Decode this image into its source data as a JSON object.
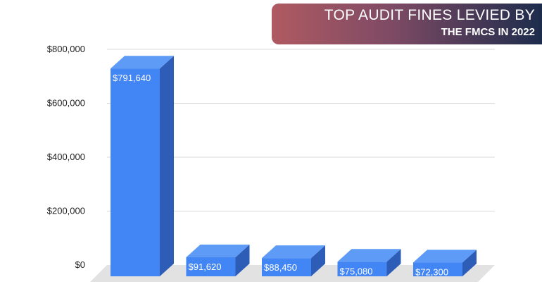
{
  "title": {
    "line1": "TOP AUDIT FINES LEVIED BY",
    "line2": "THE FMCS IN 2022"
  },
  "colors": {
    "bar_front": "#4285f4",
    "bar_side": "#2e5db8",
    "bar_top": "#5e9bf7",
    "floor": "#e2e2e2",
    "gridline": "#d9d9d9",
    "banner_start": "#b05a62",
    "banner_end": "#1d2c4c"
  },
  "chart_data": {
    "type": "bar",
    "categories": [
      "",
      "",
      "",
      "",
      ""
    ],
    "series": [
      {
        "values": [
          791640,
          91620,
          88450,
          75080,
          72300
        ]
      }
    ],
    "data_labels": [
      "$791,640",
      "$91,620",
      "$88,450",
      "$75,080",
      "$72,300"
    ],
    "y_ticks": [
      0,
      200000,
      400000,
      600000,
      800000
    ],
    "y_tick_labels": [
      "$0",
      "$200,000",
      "$400,000",
      "$600,000",
      "$800,000"
    ],
    "ylim": [
      0,
      800000
    ],
    "grid": true,
    "style": "3d",
    "legend": "none",
    "xlabel": "",
    "ylabel": ""
  }
}
